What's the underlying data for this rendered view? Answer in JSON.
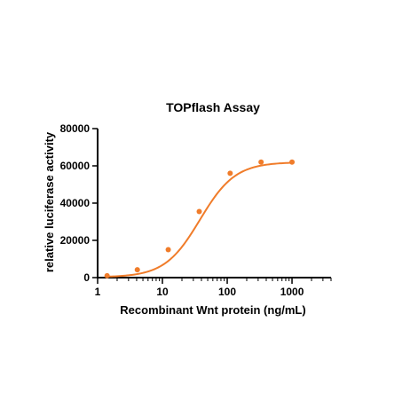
{
  "chart_data": {
    "type": "scatter",
    "title": "TOPflash Assay",
    "xlabel": "Recombinant Wnt protein (ng/mL)",
    "ylabel": "relative luciferase activity",
    "x_scale": "log",
    "xlim": [
      1,
      4000
    ],
    "ylim": [
      0,
      80000
    ],
    "x_ticks": [
      1,
      10,
      100,
      1000
    ],
    "x_tick_labels": [
      "1",
      "10",
      "100",
      "1000"
    ],
    "y_ticks": [
      0,
      20000,
      40000,
      60000,
      80000
    ],
    "y_tick_labels": [
      "0",
      "20000",
      "40000",
      "60000",
      "80000"
    ],
    "grid": false,
    "legend": "none",
    "color": "#f07c2a",
    "points": {
      "x": [
        1.4,
        4.1,
        12.3,
        37,
        111,
        333,
        1000
      ],
      "y": [
        1000,
        4200,
        15000,
        35500,
        56000,
        62000,
        62000
      ]
    },
    "fit": {
      "model": "four-parameter logistic",
      "bottom": 200,
      "top": 62000,
      "ec50": 38,
      "hill": 1.6,
      "x_range": [
        1.4,
        1000
      ]
    }
  }
}
